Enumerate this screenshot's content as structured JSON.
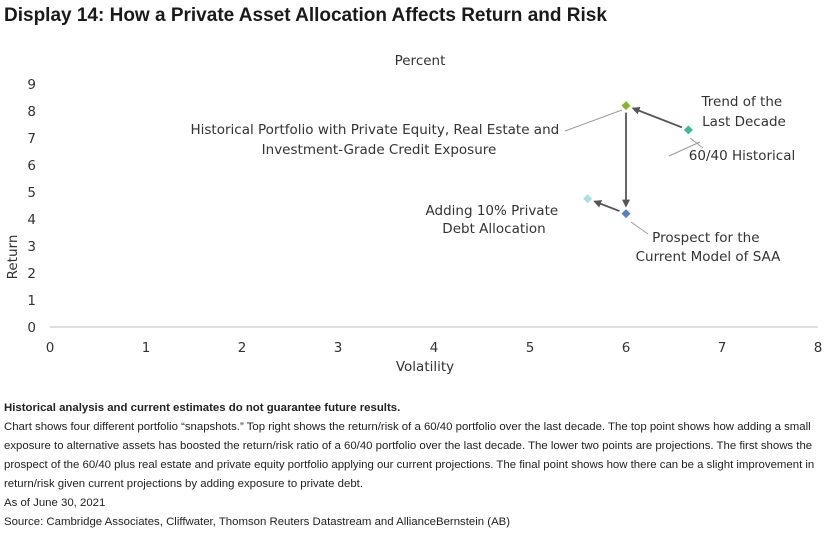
{
  "title": "Display 14: How a Private Asset Allocation Affects Return and Risk",
  "chart_data": {
    "type": "scatter",
    "subtitle": "Percent",
    "xlabel": "Volatility",
    "ylabel": "Return",
    "xlim": [
      0,
      8
    ],
    "ylim": [
      0,
      9
    ],
    "x_ticks": [
      "0",
      "1",
      "2",
      "3",
      "4",
      "5",
      "6",
      "7",
      "8"
    ],
    "y_ticks": [
      "0",
      "1",
      "2",
      "3",
      "4",
      "5",
      "6",
      "7",
      "8",
      "9"
    ],
    "grid": false,
    "points": [
      {
        "x": 6.65,
        "y": 7.3,
        "color": "#3fb8a0",
        "label": [
          "60/40 Historical"
        ]
      },
      {
        "x": 6.0,
        "y": 8.2,
        "color": "#8ab52a",
        "label": [
          "Historical Portfolio with Private Equity, Real Estate and",
          "Investment-Grade Credit Exposure"
        ]
      },
      {
        "x": 6.0,
        "y": 4.2,
        "color": "#5a7fbf",
        "label": [
          "Prospect for the",
          "Current Model of SAA"
        ]
      },
      {
        "x": 5.6,
        "y": 4.75,
        "color": "#a9e0e0",
        "label": [
          "Adding 10% Private",
          "Debt Allocation"
        ]
      }
    ],
    "annotations": [
      {
        "text": [
          "Trend of the",
          "Last Decade"
        ]
      }
    ]
  },
  "notes": {
    "disclaimer": "Historical analysis and current estimates do not guarantee future results.",
    "description": "Chart shows four different portfolio “snapshots.” Top right shows the return/risk of a 60/40 portfolio over the last decade. The top point shows how adding a small exposure to alternative assets has boosted the return/risk ratio of a 60/40 portfolio over the last decade. The lower two points are projections. The first shows the prospect of the 60/40 plus real estate and private equity portfolio applying our current projections. The final point shows how there can be a slight improvement in return/risk given current projections by adding exposure to private debt.",
    "date": "As of June 30, 2021",
    "source": "Source: Cambridge Associates, Cliffwater, Thomson Reuters Datastream and AllianceBernstein (AB)"
  }
}
